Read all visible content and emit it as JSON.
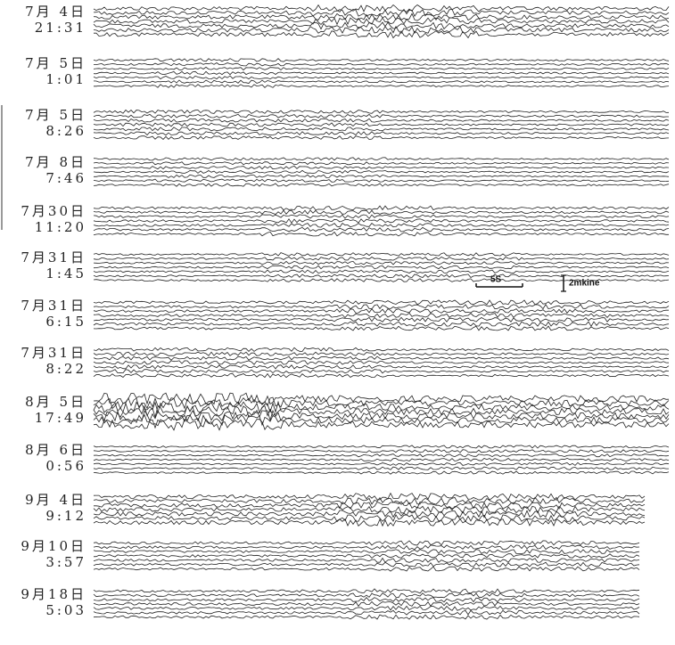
{
  "records": [
    {
      "date": "7月 4日",
      "time": "21:31"
    },
    {
      "date": "7月 5日",
      "time": "1:01"
    },
    {
      "date": "7月 5日",
      "time": "8:26"
    },
    {
      "date": "7月 8日",
      "time": "7:46"
    },
    {
      "date": "7月30日",
      "time": "11:20"
    },
    {
      "date": "7月31日",
      "time": "1:45"
    },
    {
      "date": "7月31日",
      "time": "6:15"
    },
    {
      "date": "7月31日",
      "time": "8:22"
    },
    {
      "date": "8月 5日",
      "time": "17:49"
    },
    {
      "date": "8月 6日",
      "time": "0:56"
    },
    {
      "date": "9月 4日",
      "time": "9:12"
    },
    {
      "date": "9月10日",
      "time": "3:57"
    },
    {
      "date": "9月18日",
      "time": "5:03"
    }
  ],
  "scale": {
    "time": "5S",
    "amplitude": "2mkine"
  }
}
